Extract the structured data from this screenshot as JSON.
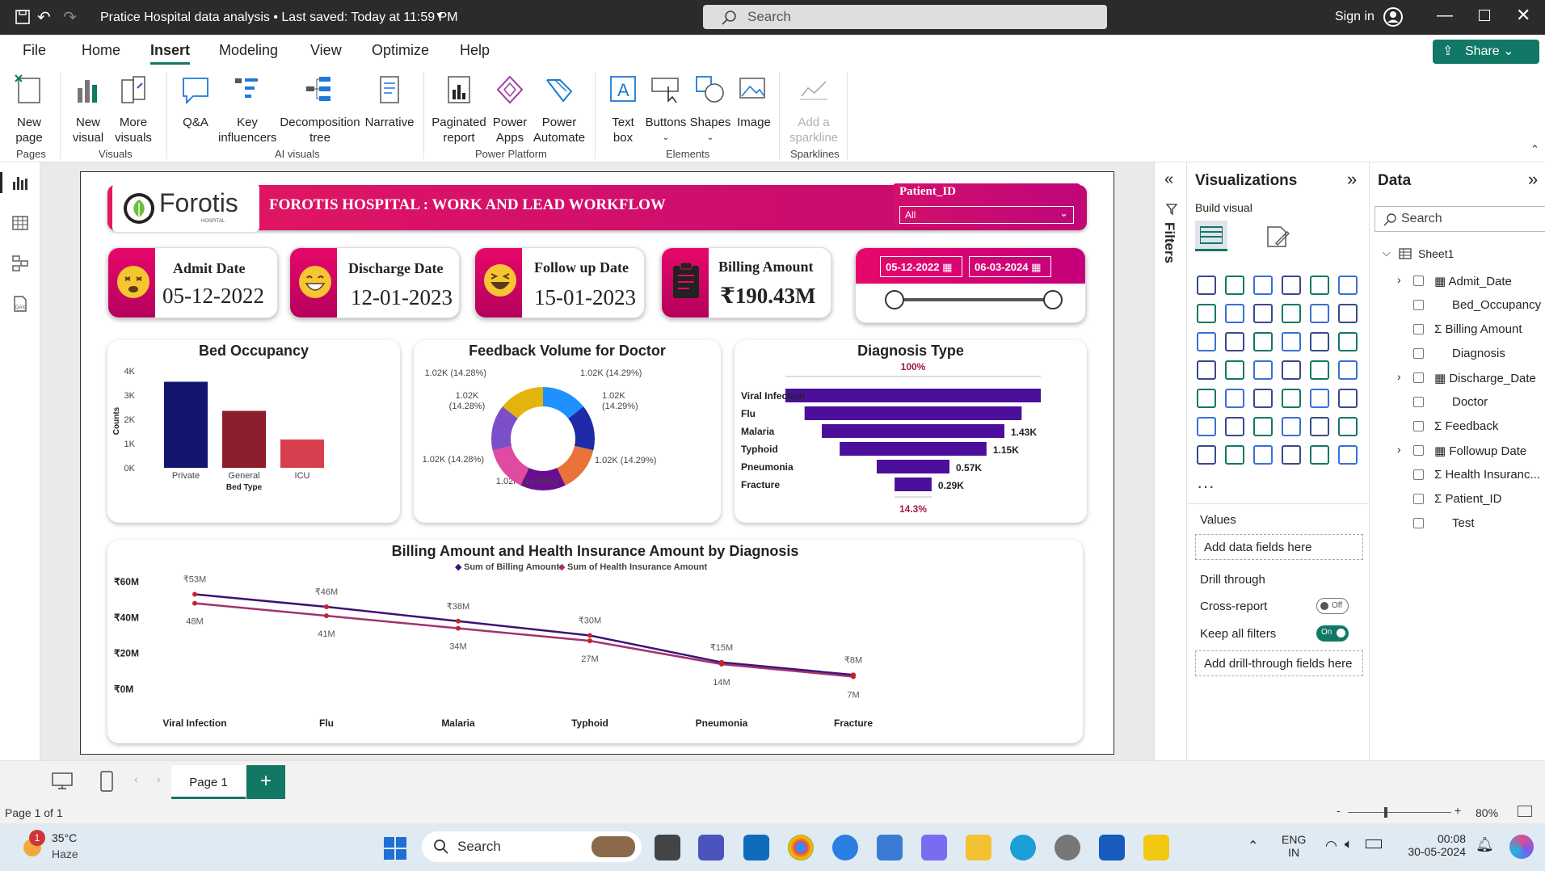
{
  "titlebar": {
    "doc_title": "Pratice Hospital data analysis",
    "saved": "Last saved: Today at 11:59 PM",
    "search": "Search",
    "sign_in": "Sign in"
  },
  "menu": {
    "items": [
      "File",
      "Home",
      "Insert",
      "Modeling",
      "View",
      "Optimize",
      "Help"
    ],
    "share": "Share"
  },
  "ribbon": {
    "new_page": "New\npage",
    "new_visual": "New\nvisual",
    "more_visuals": "More\nvisuals",
    "qa": "Q&A",
    "key_influencers": "Key\ninfluencers",
    "decomposition": "Decomposition\ntree",
    "narrative": "Narrative",
    "paginated": "Paginated\nreport",
    "power_apps": "Power\nApps",
    "power_automate": "Power\nAutomate",
    "text_box": "Text\nbox",
    "buttons": "Buttons",
    "shapes": "Shapes",
    "image": "Image",
    "sparkline": "Add a\nsparkline",
    "groups": {
      "pages": "Pages",
      "visuals": "Visuals",
      "ai": "AI visuals",
      "platform": "Power Platform",
      "elements": "Elements",
      "sparklines": "Sparklines"
    }
  },
  "report": {
    "logo": "Forotis",
    "logo_sub": "HOSPITAL",
    "header": "FOROTIS HOSPITAL :  WORK AND LEAD WORKFLOW",
    "slicer": {
      "label": "Patient_ID",
      "value": "All"
    },
    "kpis": [
      {
        "label": "Admit Date",
        "value": "05-12-2022"
      },
      {
        "label": "Discharge Date",
        "value": "12-01-2023"
      },
      {
        "label": "Follow up Date",
        "value": "15-01-2023"
      },
      {
        "label": "Billing Amount",
        "value": "₹190.43M"
      }
    ],
    "date_range": {
      "from": "05-12-2022",
      "to": "06-03-2024"
    }
  },
  "chart_data": [
    {
      "type": "bar",
      "title": "Bed Occupancy",
      "xlabel": "Bed Type",
      "ylabel": "Counts",
      "categories": [
        "Private",
        "General",
        "ICU"
      ],
      "values": [
        3.55,
        2.35,
        1.17
      ],
      "ylim": [
        0,
        4
      ],
      "yticks": [
        "4K",
        "3K",
        "2K",
        "1K",
        "0K"
      ],
      "colors": [
        "#12166e",
        "#8b1d2c",
        "#d6404e"
      ]
    },
    {
      "type": "pie",
      "title": "Feedback Volume for Doctor",
      "labels": [
        "1.02K (14.29%)",
        "1.02K (14.29%)",
        "1.02K (14.29%)",
        "1.02K (14.28%)",
        "1.02K (14.28%)",
        "1.02K (14.28%)",
        "1.02K (14.28%)"
      ],
      "values": [
        14.29,
        14.29,
        14.29,
        14.28,
        14.28,
        14.28,
        14.28
      ],
      "colors": [
        "#1e90ff",
        "#1e2aa8",
        "#e8743b",
        "#6a0d91",
        "#e14aa1",
        "#7a4fc9",
        "#e3b40c"
      ]
    },
    {
      "type": "bar",
      "title": "Diagnosis Type",
      "top_label": "100%",
      "bottom_label": "14.3%",
      "categories": [
        "Viral Infection",
        "Flu",
        "Malaria",
        "Typhoid",
        "Pneumonia",
        "Fracture"
      ],
      "values": [
        2.0,
        1.7,
        1.43,
        1.15,
        0.57,
        0.29
      ],
      "data_labels": [
        "",
        "",
        "1.43K",
        "1.15K",
        "0.57K",
        "0.29K"
      ]
    },
    {
      "type": "line",
      "title": "Billing Amount and Health Insurance Amount by Diagnosis",
      "categories": [
        "Viral Infection",
        "Flu",
        "Malaria",
        "Typhoid",
        "Pneumonia",
        "Fracture"
      ],
      "yticks": [
        "₹60M",
        "₹40M",
        "₹20M",
        "₹0M"
      ],
      "ylim": [
        0,
        60
      ],
      "series": [
        {
          "name": "Sum of Billing Amount",
          "values": [
            53,
            46,
            38,
            30,
            15,
            8
          ],
          "labels": [
            "₹53M",
            "₹46M",
            "₹38M",
            "₹30M",
            "₹15M",
            "₹8M"
          ],
          "color": "#3b1279"
        },
        {
          "name": "Sum of Health Insurance Amount",
          "values": [
            48,
            41,
            34,
            27,
            14,
            7
          ],
          "labels": [
            "48M",
            "41M",
            "34M",
            "27M",
            "14M",
            "7M"
          ],
          "color": "#a3326f"
        }
      ]
    }
  ],
  "filters": {
    "label": "Filters"
  },
  "viz": {
    "title": "Visualizations",
    "build": "Build visual",
    "values": "Values",
    "add_fields": "Add data fields here",
    "drill": "Drill through",
    "cross": "Cross-report",
    "cross_state": "Off",
    "keep": "Keep all filters",
    "keep_state": "On",
    "add_drill": "Add drill-through fields here"
  },
  "data": {
    "title": "Data",
    "search": "Search",
    "table": "Sheet1",
    "fields": [
      "Admit_Date",
      "Bed_Occupancy",
      "Billing Amount",
      "Diagnosis",
      "Discharge_Date",
      "Doctor",
      "Feedback",
      "Followup Date",
      "Health Insuranc...",
      "Patient_ID",
      "Test"
    ]
  },
  "pages": {
    "tab": "Page 1",
    "status": "Page 1 of 1",
    "zoom": "80%"
  },
  "taskbar": {
    "temp": "35°C",
    "weather": "Haze",
    "badge": "1",
    "search": "Search",
    "lang1": "ENG",
    "lang2": "IN",
    "time": "00:08",
    "date": "30-05-2024"
  }
}
